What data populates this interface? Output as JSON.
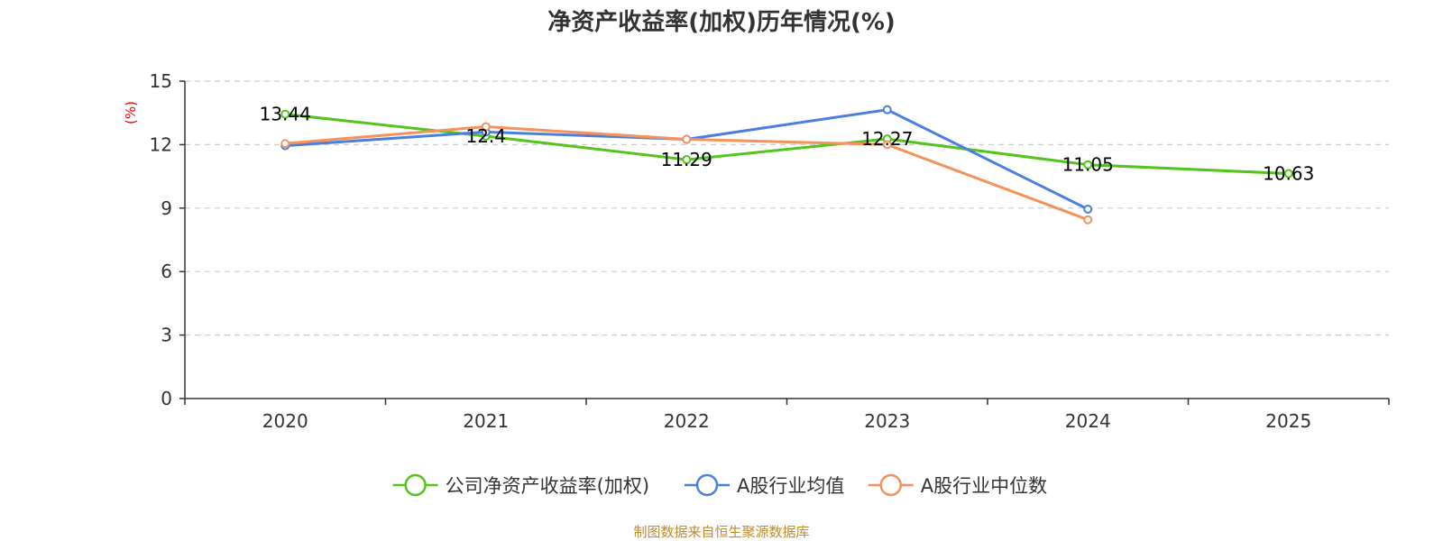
{
  "chart_data": {
    "type": "line",
    "title": "净资产收益率(加权)历年情况(%)",
    "ylabel": "(%)",
    "xlabel": "",
    "categories": [
      "2020",
      "2021",
      "2022",
      "2023",
      "2024",
      "2025"
    ],
    "ylim": [
      0,
      15
    ],
    "yticks": [
      0,
      3,
      6,
      9,
      12,
      15
    ],
    "grid": true,
    "legend_position": "bottom-center",
    "series": [
      {
        "name": "公司净资产收益率(加权)",
        "color": "#52c41a",
        "values": [
          13.44,
          12.4,
          11.29,
          12.27,
          11.05,
          10.63
        ],
        "show_labels": true
      },
      {
        "name": "A股行业均值",
        "color": "#4a7fe0",
        "values": [
          11.95,
          12.6,
          12.25,
          13.65,
          8.95,
          null
        ],
        "show_labels": false
      },
      {
        "name": "A股行业中位数",
        "color": "#f4925a",
        "values": [
          12.05,
          12.85,
          12.25,
          12.0,
          8.45,
          null
        ],
        "show_labels": false
      }
    ],
    "data_labels": [
      "13.44",
      "12.4",
      "11.29",
      "12.27",
      "11.05",
      "10.63"
    ],
    "source": "制图数据来自恒生聚源数据库"
  }
}
